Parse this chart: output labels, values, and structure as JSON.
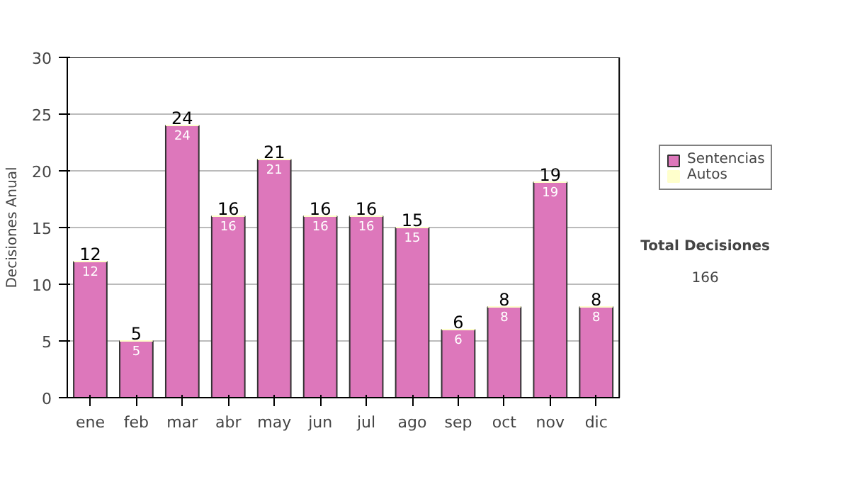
{
  "chart_data": {
    "type": "bar",
    "stacked": true,
    "ylabel": "Decisiones Anual",
    "categories": [
      "ene",
      "feb",
      "mar",
      "abr",
      "may",
      "jun",
      "jul",
      "ago",
      "sep",
      "oct",
      "nov",
      "dic"
    ],
    "series": [
      {
        "name": "Sentencias",
        "color": "#dd77bb",
        "values": [
          12,
          5,
          24,
          16,
          21,
          16,
          16,
          15,
          6,
          8,
          19,
          8
        ],
        "value_labels": [
          "12",
          "5",
          "24",
          "16",
          "21",
          "16",
          "16",
          "15",
          "6",
          "8",
          "19",
          "8"
        ]
      },
      {
        "name": "Autos",
        "color": "#ffffcc",
        "values": [
          0,
          0,
          0,
          0,
          0,
          0,
          0,
          0,
          0,
          0,
          0,
          0
        ]
      }
    ],
    "totals": [
      "12",
      "5",
      "24",
      "16",
      "21",
      "16",
      "16",
      "15",
      "6",
      "8",
      "19",
      "8"
    ],
    "ylim": [
      0,
      30
    ],
    "yticks": [
      0,
      5,
      10,
      15,
      20,
      25,
      30
    ],
    "grid": "y",
    "legend": "right",
    "annotations": [
      "Total Decisiones",
      "166"
    ]
  }
}
